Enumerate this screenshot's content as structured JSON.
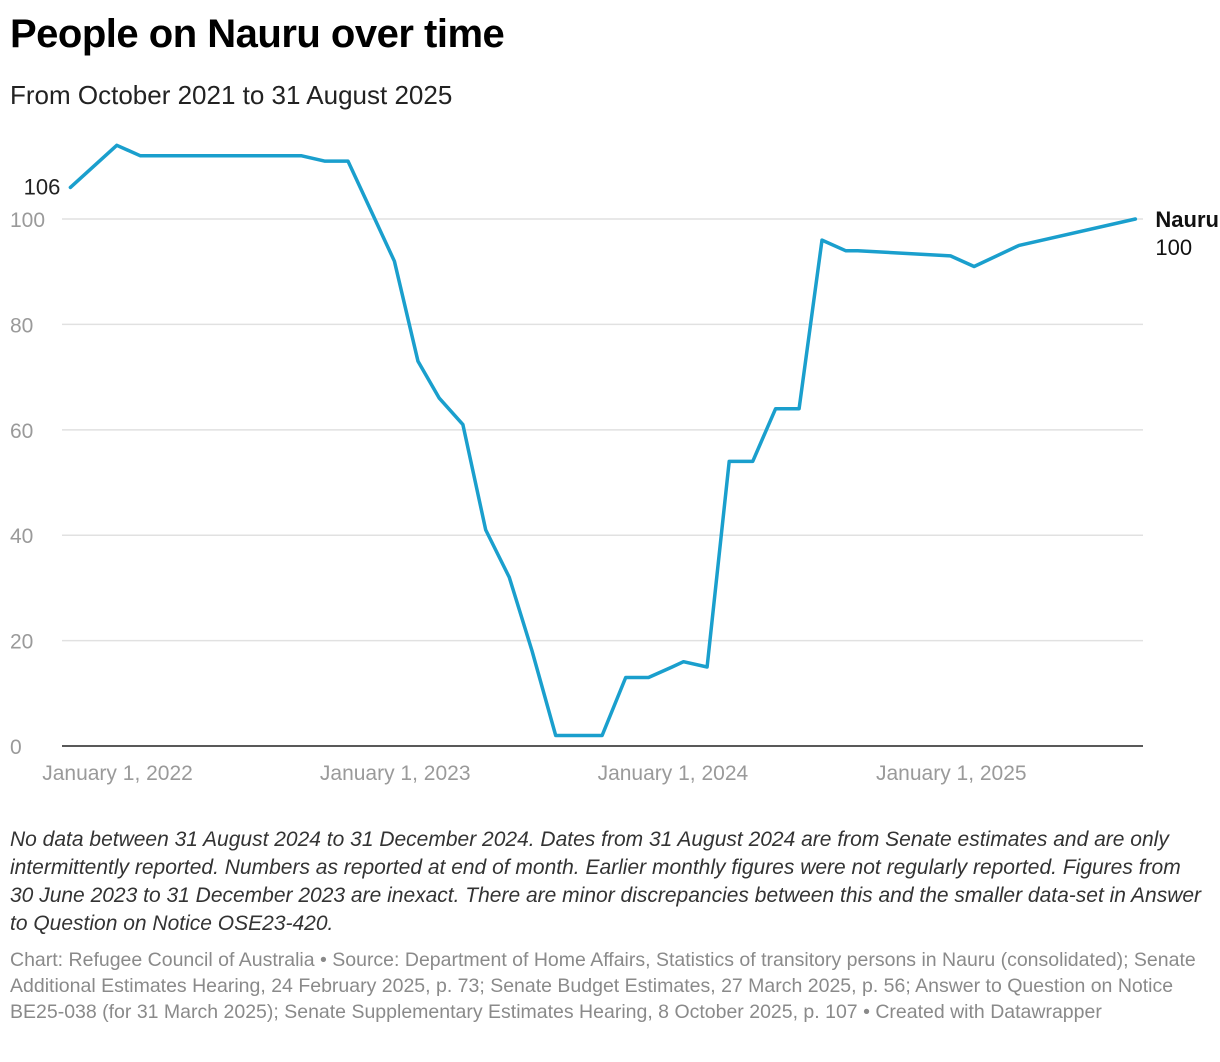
{
  "header": {
    "title": "People on Nauru over time",
    "subtitle": "From October 2021 to 31 August 2025"
  },
  "chart_data": {
    "type": "line",
    "series": [
      {
        "name": "Nauru",
        "color": "#1a9fcd",
        "points": [
          {
            "x": "2021-10-31",
            "y": 106
          },
          {
            "x": "2021-12-31",
            "y": 114
          },
          {
            "x": "2022-01-31",
            "y": 112
          },
          {
            "x": "2022-02-28",
            "y": 112
          },
          {
            "x": "2022-03-31",
            "y": 112
          },
          {
            "x": "2022-04-30",
            "y": 112
          },
          {
            "x": "2022-05-31",
            "y": 112
          },
          {
            "x": "2022-06-30",
            "y": 112
          },
          {
            "x": "2022-07-31",
            "y": 112
          },
          {
            "x": "2022-08-31",
            "y": 112
          },
          {
            "x": "2022-09-30",
            "y": 111
          },
          {
            "x": "2022-10-31",
            "y": 111
          },
          {
            "x": "2022-12-31",
            "y": 92
          },
          {
            "x": "2023-01-31",
            "y": 73
          },
          {
            "x": "2023-02-28",
            "y": 66
          },
          {
            "x": "2023-03-31",
            "y": 61
          },
          {
            "x": "2023-04-30",
            "y": 41
          },
          {
            "x": "2023-05-31",
            "y": 32
          },
          {
            "x": "2023-06-30",
            "y": 18
          },
          {
            "x": "2023-07-31",
            "y": 2
          },
          {
            "x": "2023-08-31",
            "y": 2
          },
          {
            "x": "2023-09-30",
            "y": 2
          },
          {
            "x": "2023-10-31",
            "y": 13
          },
          {
            "x": "2023-11-30",
            "y": 13
          },
          {
            "x": "2023-12-31",
            "y": 15
          },
          {
            "x": "2024-01-15",
            "y": 16
          },
          {
            "x": "2024-02-15",
            "y": 15
          },
          {
            "x": "2024-03-15",
            "y": 54
          },
          {
            "x": "2024-04-15",
            "y": 54
          },
          {
            "x": "2024-05-15",
            "y": 64
          },
          {
            "x": "2024-06-15",
            "y": 64
          },
          {
            "x": "2024-07-15",
            "y": 96
          },
          {
            "x": "2024-08-15",
            "y": 94
          },
          {
            "x": "2024-08-31",
            "y": 94
          },
          {
            "x": "2024-12-31",
            "y": 93
          },
          {
            "x": "2025-01-31",
            "y": 91
          },
          {
            "x": "2025-03-31",
            "y": 95
          },
          {
            "x": "2025-08-31",
            "y": 100
          }
        ]
      }
    ],
    "xlim": [
      "2021-10-20",
      "2025-09-10"
    ],
    "ylim": [
      0,
      115
    ],
    "y_ticks": [
      0,
      20,
      40,
      60,
      80,
      100
    ],
    "x_ticks": [
      {
        "date": "2022-01-01",
        "label": "January 1, 2022"
      },
      {
        "date": "2023-01-01",
        "label": "January 1, 2023"
      },
      {
        "date": "2024-01-01",
        "label": "January 1, 2024"
      },
      {
        "date": "2025-01-01",
        "label": "January 1, 2025"
      }
    ],
    "grid": true,
    "start_label": "106",
    "end_label_name": "Nauru",
    "end_label_value": "100"
  },
  "footer": {
    "notes": "No data between 31 August 2024 to 31 December 2024. Dates from 31 August 2024 are from Senate estimates and are only intermittently reported. Numbers as reported at end of month. Earlier monthly figures were not regularly reported. Figures from 30 June 2023 to 31 December 2023 are inexact. There are minor discrepancies between this and the smaller data-set in Answer to Question on Notice OSE23-420.",
    "source": "Chart: Refugee Council of Australia • Source: Department of Home Affairs, Statistics of transitory persons in Nauru (consolidated); Senate Additional Estimates Hearing, 24 February 2025, p. 73; Senate Budget Estimates, 27 March 2025, p. 56; Answer to Question on Notice BE25-038 (for 31 March 2025); Senate Supplementary Estimates Hearing, 8 October 2025, p. 107 • Created with Datawrapper"
  }
}
